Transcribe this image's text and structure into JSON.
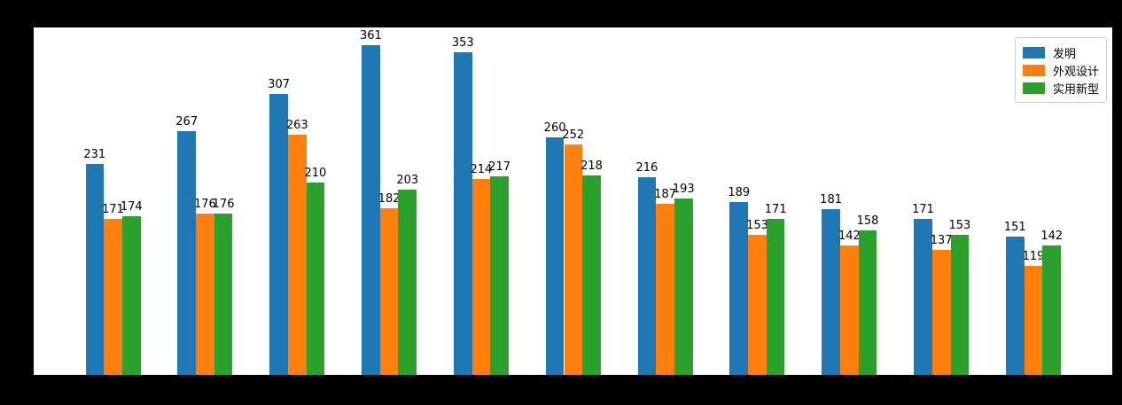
{
  "figure": {
    "background_color": "#000000",
    "axes_background_color": "#ffffff"
  },
  "chart_data": {
    "type": "bar",
    "title": "",
    "xlabel": "",
    "ylabel": "",
    "categories": [
      "",
      "",
      "",
      "",
      "",
      "",
      "",
      "",
      "",
      "",
      ""
    ],
    "series": [
      {
        "name": "发明",
        "color": "#1f77b4",
        "values": [
          231,
          267,
          307,
          361,
          353,
          260,
          216,
          189,
          181,
          171,
          151
        ]
      },
      {
        "name": "外观设计",
        "color": "#ff7f0e",
        "values": [
          171,
          176,
          263,
          182,
          214,
          252,
          187,
          153,
          142,
          137,
          119
        ]
      },
      {
        "name": "实用新型",
        "color": "#2ca02c",
        "values": [
          174,
          176,
          210,
          203,
          217,
          218,
          193,
          171,
          158,
          153,
          142
        ]
      }
    ],
    "ylim": [
      0,
      380
    ],
    "grid": false,
    "bar_value_labels": true,
    "legend_position": "upper right",
    "axis_tick_labels_visible": false
  }
}
